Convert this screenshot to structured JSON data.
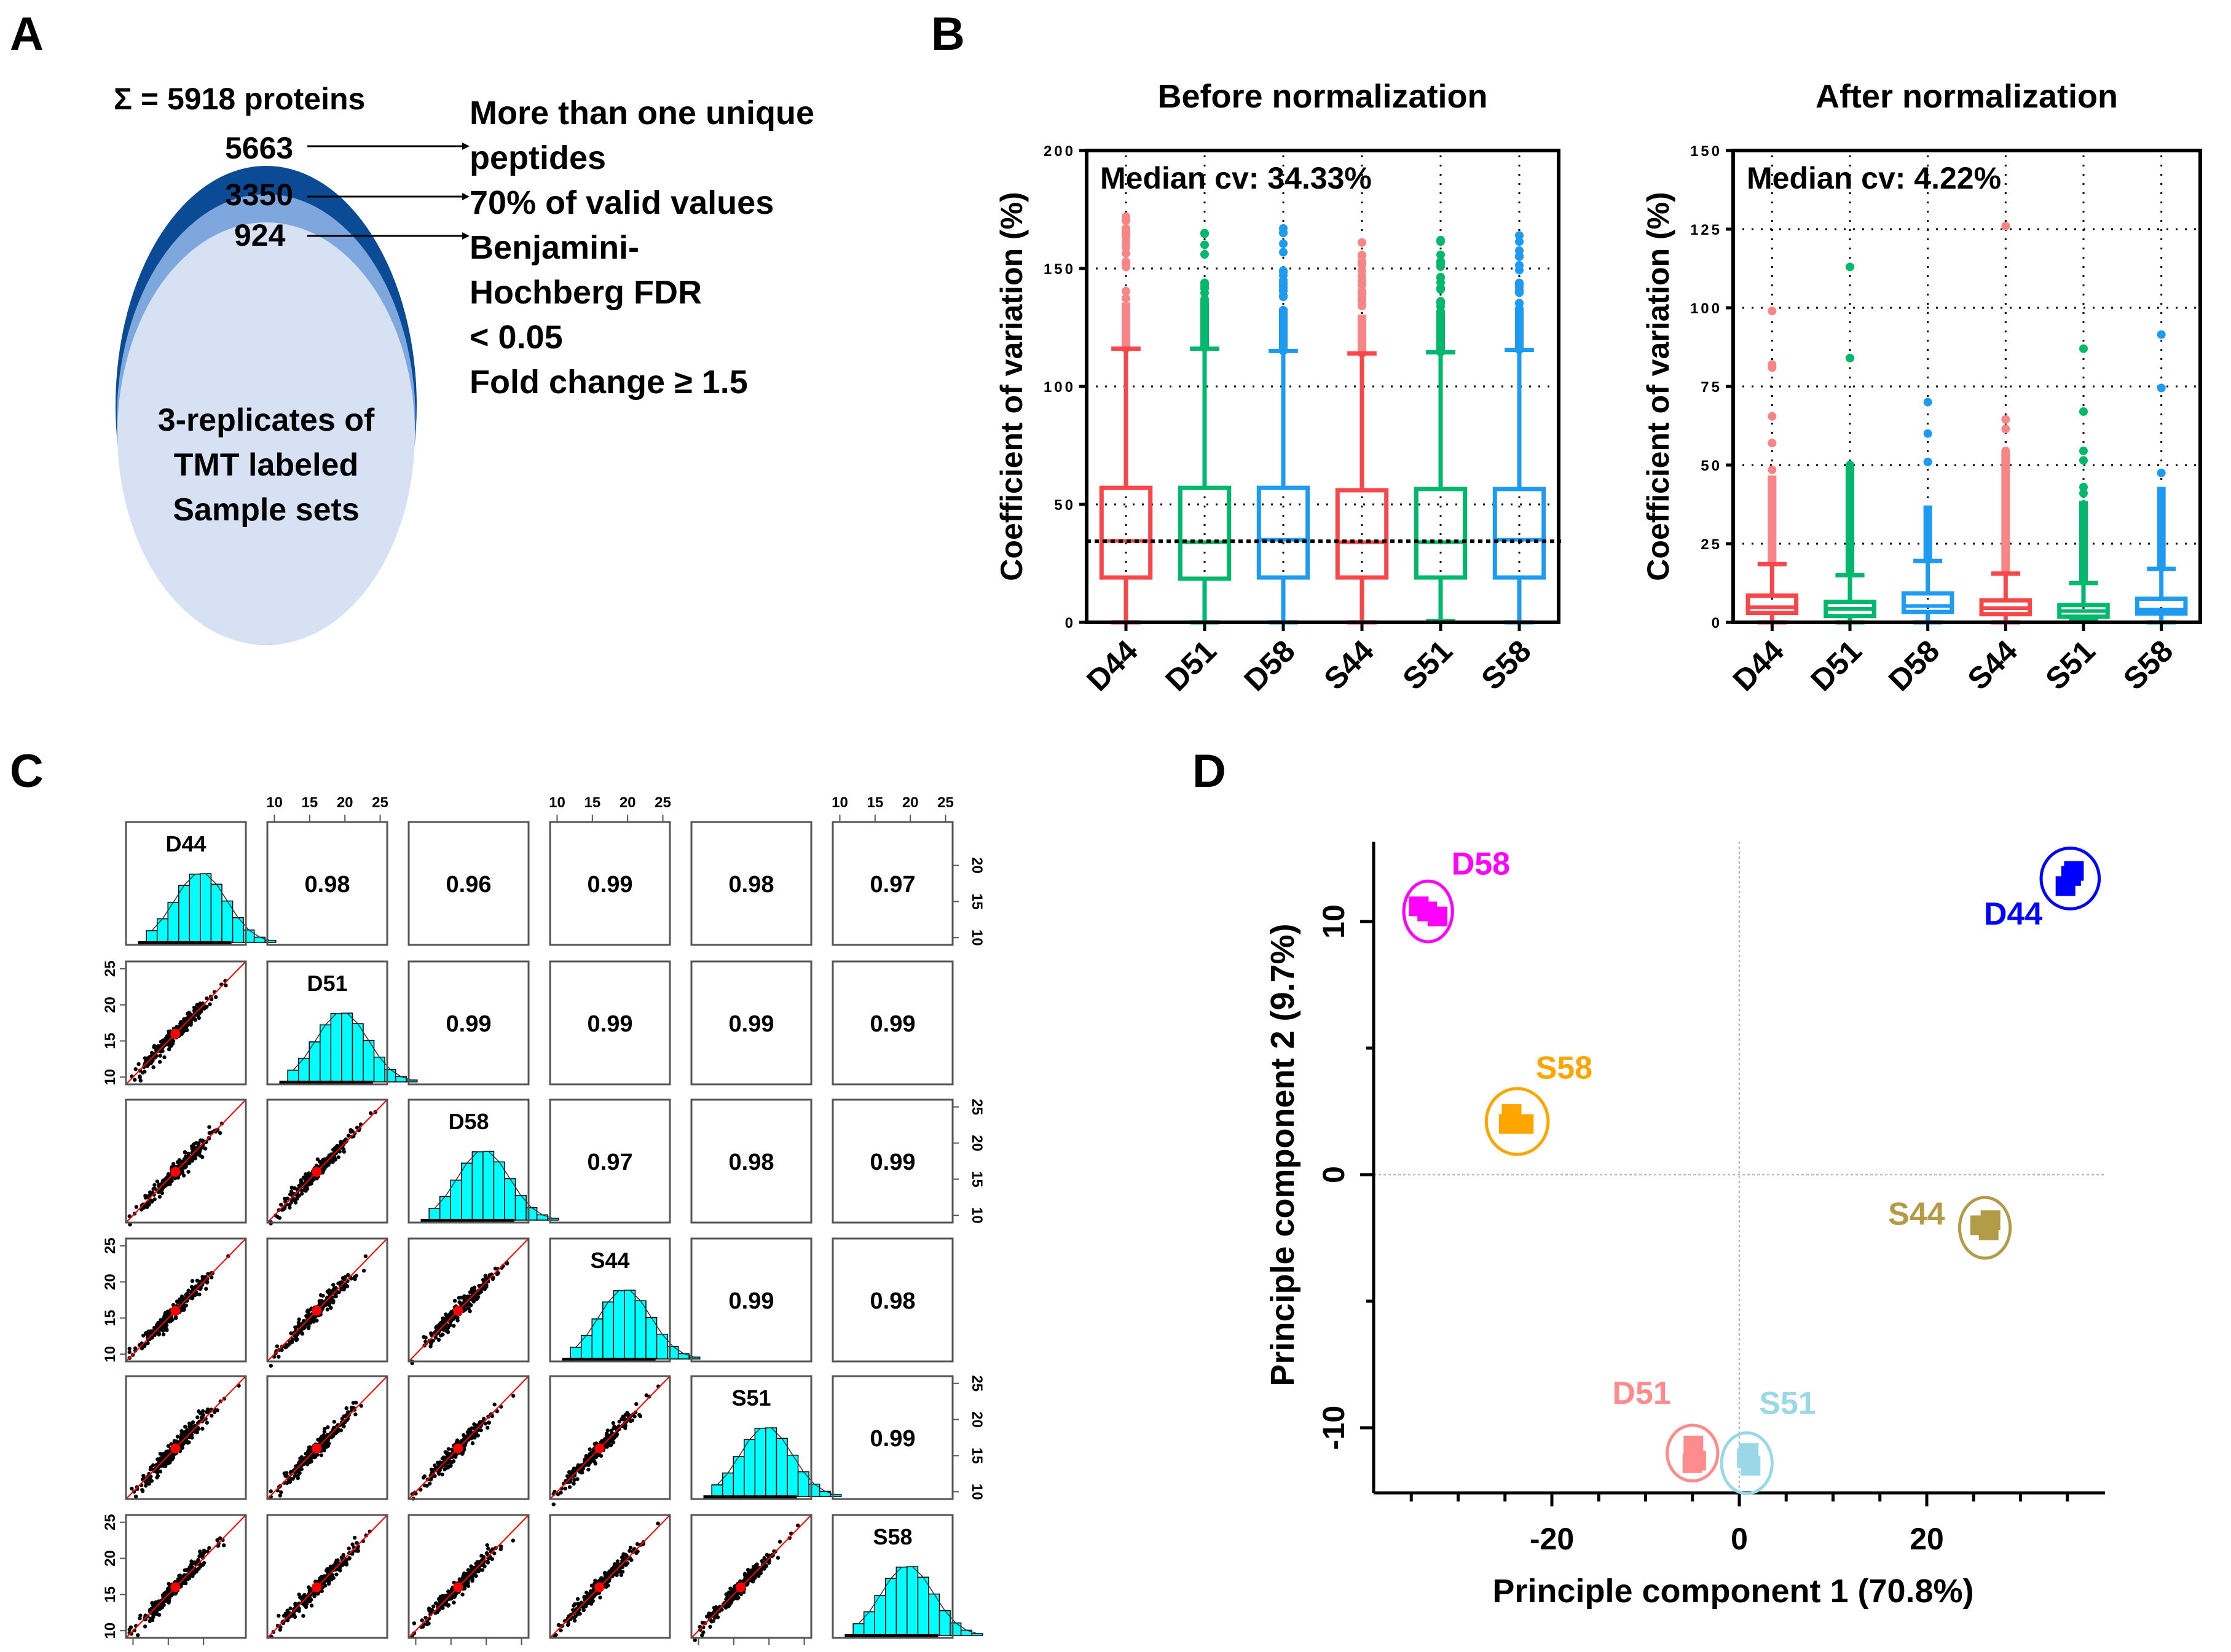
{
  "panels": {
    "A": {
      "letter": "A",
      "total_label": "Σ = 5918 proteins",
      "layers": [
        {
          "count": "5663",
          "criterion": "More than one unique peptides",
          "color": "#0b4a94"
        },
        {
          "count": "3350",
          "criterion": "70% of valid values",
          "color": "#7ea7dd"
        },
        {
          "count": "924",
          "criterion": "Benjamini-Hochberg FDR < 0.05 Fold change ≥ 1.5",
          "color": "#d6e2f4"
        }
      ],
      "criteria_lines": [
        "More than one unique",
        "peptides",
        "70% of valid values",
        "Benjamini-",
        "Hochberg FDR",
        "< 0.05",
        "Fold change ≥ 1.5"
      ],
      "inner_lines": [
        "3-replicates of",
        "TMT labeled",
        "Sample sets"
      ]
    },
    "B": {
      "letter": "B"
    },
    "C": {
      "letter": "C"
    },
    "D": {
      "letter": "D"
    }
  },
  "chart_data": [
    {
      "id": "B-before",
      "type": "box",
      "title": "Before normalization",
      "ylabel": "Coefficient of variation (%)",
      "xlabel": "",
      "ylim": [
        0,
        200
      ],
      "yticks": [
        0,
        50,
        100,
        150,
        200
      ],
      "grid": true,
      "annotation": "Median cv: 34.33%",
      "overall_median": 34.33,
      "categories": [
        "D44",
        "D51",
        "D58",
        "S44",
        "S51",
        "S58"
      ],
      "colors": [
        "#f8474a",
        "#00b86b",
        "#1e9bf0",
        "#f8474a",
        "#00b86b",
        "#1e9bf0"
      ],
      "outlier_colors": [
        "#f88585",
        "#00b86b",
        "#1e9bf0",
        "#f88585",
        "#00b86b",
        "#1e9bf0"
      ],
      "boxes": [
        {
          "min": 0,
          "q1": 19,
          "median": 34.5,
          "q3": 57,
          "whisker_high": 116,
          "outlier_max": 172
        },
        {
          "min": 0,
          "q1": 18.5,
          "median": 34,
          "q3": 57,
          "whisker_high": 116,
          "outlier_max": 165
        },
        {
          "min": 0,
          "q1": 19,
          "median": 35,
          "q3": 57,
          "whisker_high": 115,
          "outlier_max": 167
        },
        {
          "min": 0,
          "q1": 19,
          "median": 34,
          "q3": 56,
          "whisker_high": 114,
          "outlier_max": 161
        },
        {
          "min": 0.5,
          "q1": 19,
          "median": 34,
          "q3": 56.5,
          "whisker_high": 114.5,
          "outlier_max": 162
        },
        {
          "min": 0,
          "q1": 19,
          "median": 35,
          "q3": 56.5,
          "whisker_high": 115.5,
          "outlier_max": 164
        }
      ]
    },
    {
      "id": "B-after",
      "type": "box",
      "title": "After normalization",
      "ylabel": "Coefficient of variation (%)",
      "xlabel": "",
      "ylim": [
        0,
        150
      ],
      "yticks": [
        0,
        25,
        50,
        75,
        100,
        125,
        150
      ],
      "grid": true,
      "annotation": "Median cv: 4.22%",
      "overall_median": 4.22,
      "categories": [
        "D44",
        "D51",
        "D58",
        "S44",
        "S51",
        "S58"
      ],
      "colors": [
        "#f8474a",
        "#00b86b",
        "#1e9bf0",
        "#f8474a",
        "#00b86b",
        "#1e9bf0"
      ],
      "outlier_colors": [
        "#f88585",
        "#00b86b",
        "#1e9bf0",
        "#f88585",
        "#00b86b",
        "#1e9bf0"
      ],
      "boxes": [
        {
          "min": 0,
          "q1": 3,
          "median": 4.8,
          "q3": 8.5,
          "whisker_high": 18.5,
          "outlier_max": 99,
          "outliers": [
            99,
            82,
            81,
            65.5,
            57,
            48.5
          ]
        },
        {
          "min": 0,
          "q1": 2,
          "median": 4.3,
          "q3": 6.5,
          "whisker_high": 15,
          "outlier_max": 113,
          "outliers": [
            113,
            84,
            50
          ]
        },
        {
          "min": 0,
          "q1": 3.3,
          "median": 5.2,
          "q3": 9.2,
          "whisker_high": 19.5,
          "outlier_max": 70,
          "outliers": [
            70,
            60,
            51
          ]
        },
        {
          "min": 0,
          "q1": 2.6,
          "median": 4.5,
          "q3": 7,
          "whisker_high": 15.5,
          "outlier_max": 126,
          "outliers": [
            126,
            64.5,
            61.5,
            54.5,
            53
          ]
        },
        {
          "min": 0.5,
          "q1": 1.8,
          "median": 3.6,
          "q3": 5.5,
          "whisker_high": 12.5,
          "outlier_max": 87,
          "outliers": [
            87,
            67,
            54.5,
            51.5,
            43,
            41,
            37.5
          ]
        },
        {
          "min": 0,
          "q1": 2.8,
          "median": 4,
          "q3": 7.5,
          "whisker_high": 17,
          "outlier_max": 91.5,
          "outliers": [
            91.5,
            74.5,
            47.5
          ]
        }
      ]
    },
    {
      "id": "C-pairs",
      "type": "scatter-matrix",
      "title": "",
      "variables": [
        "D44",
        "D51",
        "D58",
        "S44",
        "S51",
        "S58"
      ],
      "axis_range": [
        9,
        26
      ],
      "tick_values": [
        "10",
        "15",
        "20",
        "25"
      ],
      "bottom_ticks_first_col": [
        "10",
        "15",
        "20"
      ],
      "correlations": [
        {
          "row": 0,
          "col": 1,
          "value": "0.98"
        },
        {
          "row": 0,
          "col": 2,
          "value": "0.96"
        },
        {
          "row": 0,
          "col": 3,
          "value": "0.99"
        },
        {
          "row": 0,
          "col": 4,
          "value": "0.98"
        },
        {
          "row": 0,
          "col": 5,
          "value": "0.97"
        },
        {
          "row": 1,
          "col": 2,
          "value": "0.99"
        },
        {
          "row": 1,
          "col": 3,
          "value": "0.99"
        },
        {
          "row": 1,
          "col": 4,
          "value": "0.99"
        },
        {
          "row": 1,
          "col": 5,
          "value": "0.99"
        },
        {
          "row": 2,
          "col": 3,
          "value": "0.97"
        },
        {
          "row": 2,
          "col": 4,
          "value": "0.98"
        },
        {
          "row": 2,
          "col": 5,
          "value": "0.99"
        },
        {
          "row": 3,
          "col": 4,
          "value": "0.99"
        },
        {
          "row": 3,
          "col": 5,
          "value": "0.98"
        },
        {
          "row": 4,
          "col": 5,
          "value": "0.99"
        }
      ],
      "histogram_color": "#00ffff",
      "scatter_color": "#000000",
      "fit_line_color": "#ff0000",
      "distribution_mean": 16,
      "distribution_sd": 2.6
    },
    {
      "id": "D-pca",
      "type": "scatter",
      "title": "",
      "xlabel": "Principle component 1 (70.8%)",
      "ylabel": "Principle component 2 (9.7%)",
      "xlim": [
        -38,
        38
      ],
      "ylim": [
        -13,
        13.5
      ],
      "xticks": [
        -20,
        0,
        20
      ],
      "yticks": [
        -10,
        0,
        10
      ],
      "grid": false,
      "reference_lines": {
        "x": 0,
        "y": 0
      },
      "series": [
        {
          "name": "D58",
          "color": "#ff00ff",
          "points": [
            [
              -34.2,
              10.6
            ],
            [
              -33.3,
              10.4
            ],
            [
              -32.2,
              10.2
            ]
          ],
          "center": [
            -33.2,
            10.4
          ],
          "ellipse": [
            2.6,
            1.2
          ]
        },
        {
          "name": "D44",
          "color": "#0000ff",
          "points": [
            [
              35.7,
              12.0
            ],
            [
              34.8,
              11.4
            ],
            [
              35.4,
              11.8
            ]
          ],
          "center": [
            35.3,
            11.7
          ],
          "ellipse": [
            3.1,
            1.2
          ]
        },
        {
          "name": "S58",
          "color": "#ffa500",
          "points": [
            [
              -24.3,
              2.4
            ],
            [
              -23.0,
              2.0
            ],
            [
              -24.6,
              2.0
            ]
          ],
          "center": [
            -23.7,
            2.1
          ],
          "ellipse": [
            3.3,
            1.3
          ]
        },
        {
          "name": "S44",
          "color": "#b39c47",
          "points": [
            [
              25.7,
              -2.0
            ],
            [
              26.6,
              -2.2
            ],
            [
              26.8,
              -1.8
            ]
          ],
          "center": [
            26.2,
            -2.1
          ],
          "ellipse": [
            2.7,
            1.2
          ]
        },
        {
          "name": "D51",
          "color": "#ff8c8c",
          "points": [
            [
              -4.9,
              -10.7
            ],
            [
              -5.0,
              -11.4
            ],
            [
              -4.6,
              -11.3
            ]
          ],
          "center": [
            -5.0,
            -11.0
          ],
          "ellipse": [
            2.7,
            1.1
          ]
        },
        {
          "name": "S51",
          "color": "#9ad8e8",
          "points": [
            [
              0.8,
              -11.2
            ],
            [
              1.2,
              -11.5
            ],
            [
              1.0,
              -11.0
            ]
          ],
          "center": [
            0.8,
            -11.4
          ],
          "ellipse": [
            2.7,
            1.2
          ]
        }
      ]
    }
  ]
}
